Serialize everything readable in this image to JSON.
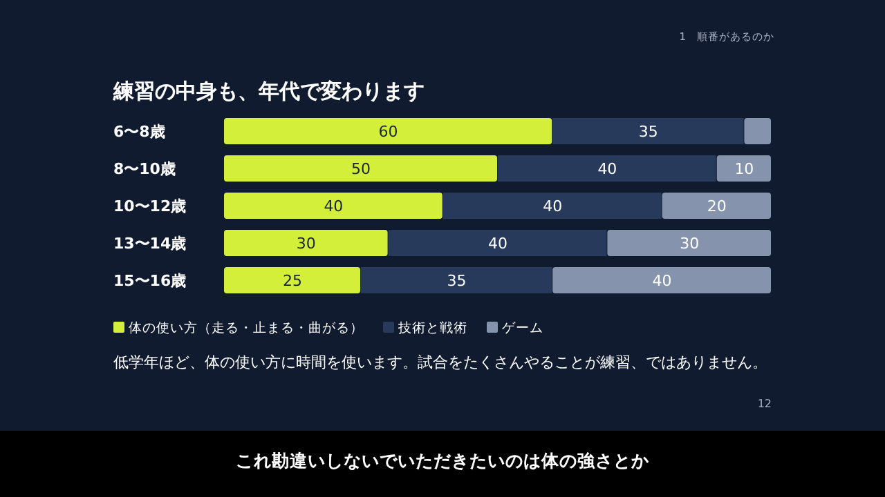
{
  "chart_data": {
    "type": "bar",
    "orientation": "horizontal",
    "stacked": true,
    "title": "練習の中身も、年代で変わります",
    "categories": [
      "6〜8歳",
      "8〜10歳",
      "10〜12歳",
      "13〜14歳",
      "15〜16歳"
    ],
    "series": [
      {
        "name": "体の使い方（走る・止まる・曲がる）",
        "color": "#d4ef3a",
        "values": [
          60,
          50,
          40,
          30,
          25
        ],
        "value_labels": [
          "60",
          "50",
          "40",
          "30",
          "25"
        ]
      },
      {
        "name": "技術と戦術",
        "color": "#283a5c",
        "values": [
          35,
          40,
          40,
          40,
          35
        ],
        "value_labels": [
          "35",
          "40",
          "40",
          "40",
          "35"
        ]
      },
      {
        "name": "ゲーム",
        "color": "#8593ad",
        "values": [
          5,
          10,
          20,
          30,
          40
        ],
        "value_labels": [
          null,
          "10",
          "20",
          "30",
          "40"
        ]
      }
    ],
    "xlim": [
      0,
      100
    ],
    "tick_labels": "y",
    "legend": "bottom left",
    "marker": "square",
    "annotations": [
      "1　順番があるのか",
      "低学年ほど、体の使い方に時間を使います。試合をたくさんやることが練習、ではありません。",
      "12",
      "これ勘違いしないでいただきたいのは体の強さとか"
    ]
  }
}
